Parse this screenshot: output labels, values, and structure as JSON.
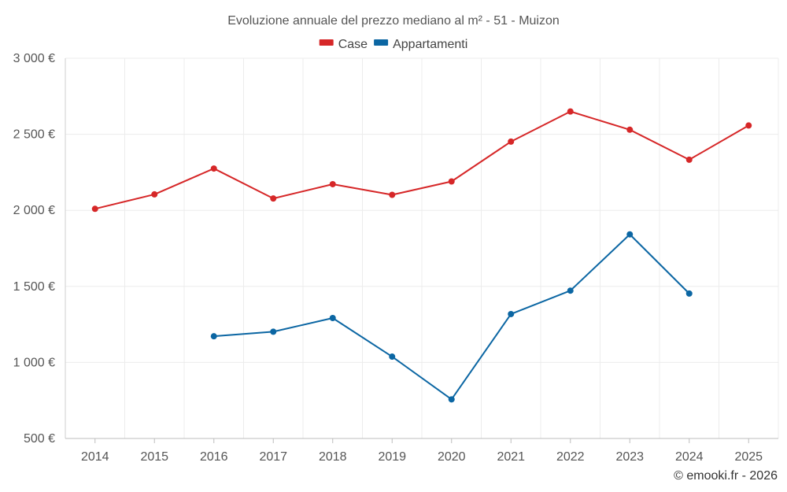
{
  "chart_data": {
    "type": "line",
    "title": "Evoluzione annuale del prezzo mediano al m² - 51 - Muizon",
    "categories": [
      "2014",
      "2015",
      "2016",
      "2017",
      "2018",
      "2019",
      "2020",
      "2021",
      "2022",
      "2023",
      "2024",
      "2025"
    ],
    "series": [
      {
        "name": "Case",
        "color": "#d62728",
        "values": [
          2010,
          2105,
          2275,
          2078,
          2172,
          2102,
          2190,
          2452,
          2650,
          2530,
          2333,
          2558
        ]
      },
      {
        "name": "Appartamenti",
        "color": "#0b66a3",
        "values": [
          null,
          null,
          1172,
          1202,
          1292,
          1038,
          757,
          1318,
          1472,
          1842,
          1453,
          null
        ]
      }
    ],
    "y_ticks": [
      500,
      1000,
      1500,
      2000,
      2500,
      3000
    ],
    "y_tick_labels": [
      "500 €",
      "1 000 €",
      "1 500 €",
      "2 000 €",
      "2 500 €",
      "3 000 €"
    ],
    "ylim": [
      500,
      3000
    ],
    "xlabel": "",
    "ylabel": "",
    "grid": true,
    "legend_position": "top-center"
  },
  "credit": "© emooki.fr - 2026"
}
